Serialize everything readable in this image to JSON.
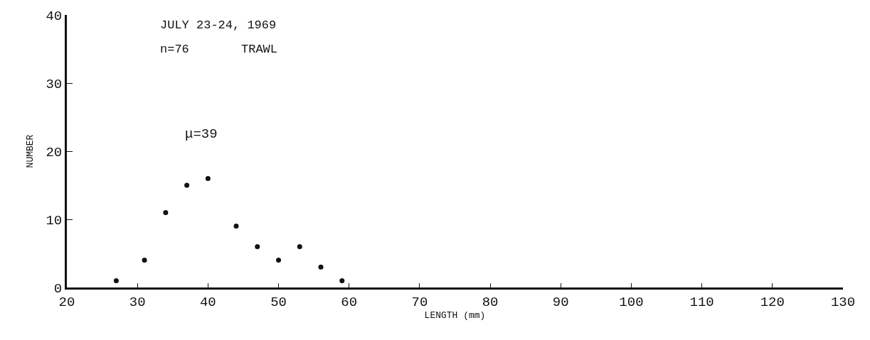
{
  "chart_data": {
    "type": "scatter",
    "xlabel": "LENGTH (mm)",
    "ylabel": "NUMBER",
    "annotations": [
      "JULY 23-24, 1969",
      "n=76",
      "TRAWL",
      "μ=39"
    ],
    "x": [
      27,
      31,
      34,
      37,
      40,
      44,
      47,
      50,
      53,
      56,
      59
    ],
    "values": [
      1,
      4,
      11,
      15,
      16,
      9,
      6,
      4,
      6,
      3,
      1
    ],
    "color": "#111111",
    "marker": "circle",
    "xlim": [
      20,
      130
    ],
    "xticks": [
      20,
      30,
      40,
      50,
      60,
      70,
      80,
      90,
      100,
      110,
      120,
      130
    ],
    "ylim": [
      0,
      40
    ],
    "yticks": [
      0,
      10,
      20,
      30,
      40
    ]
  }
}
